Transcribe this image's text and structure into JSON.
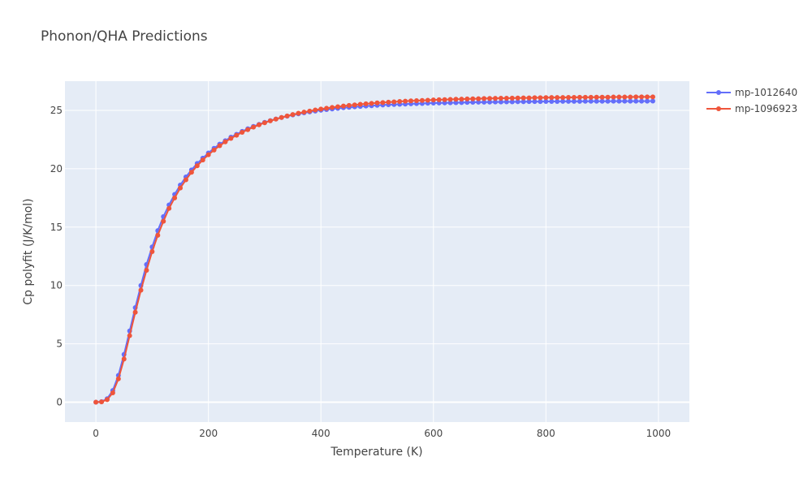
{
  "chart_data": {
    "type": "line",
    "title": "Phonon/QHA Predictions",
    "xlabel": "Temperature (K)",
    "ylabel": "Cp polyfit (J/K/mol)",
    "xlim": [
      -55,
      1055
    ],
    "ylim": [
      -1.7,
      27.5
    ],
    "x_ticks": [
      0,
      200,
      400,
      600,
      800,
      1000
    ],
    "y_ticks": [
      0,
      5,
      10,
      15,
      20,
      25
    ],
    "grid": true,
    "legend": "top-right, outside plot",
    "x": [
      0,
      10,
      20,
      30,
      40,
      50,
      60,
      70,
      80,
      90,
      100,
      110,
      120,
      130,
      140,
      150,
      160,
      170,
      180,
      190,
      200,
      210,
      220,
      230,
      240,
      250,
      260,
      270,
      280,
      290,
      300,
      310,
      320,
      330,
      340,
      350,
      360,
      370,
      380,
      390,
      400,
      410,
      420,
      430,
      440,
      450,
      460,
      470,
      480,
      490,
      500,
      510,
      520,
      530,
      540,
      550,
      560,
      570,
      580,
      590,
      600,
      610,
      620,
      630,
      640,
      650,
      660,
      670,
      680,
      690,
      700,
      710,
      720,
      730,
      740,
      750,
      760,
      770,
      780,
      790,
      800,
      810,
      820,
      830,
      840,
      850,
      860,
      870,
      880,
      890,
      900,
      910,
      920,
      930,
      940,
      950,
      960,
      970,
      980,
      990
    ],
    "series": [
      {
        "name": "mp-1012640",
        "color": "#636efa",
        "values": [
          0.0,
          0.05,
          0.3,
          1.0,
          2.3,
          4.1,
          6.1,
          8.1,
          10.0,
          11.8,
          13.3,
          14.7,
          15.9,
          16.9,
          17.8,
          18.6,
          19.3,
          19.9,
          20.45,
          20.9,
          21.35,
          21.75,
          22.1,
          22.4,
          22.7,
          22.95,
          23.2,
          23.42,
          23.62,
          23.8,
          23.97,
          24.12,
          24.26,
          24.39,
          24.5,
          24.61,
          24.7,
          24.79,
          24.87,
          24.94,
          25.01,
          25.07,
          25.12,
          25.17,
          25.22,
          25.26,
          25.3,
          25.34,
          25.37,
          25.4,
          25.43,
          25.46,
          25.48,
          25.5,
          25.52,
          25.54,
          25.56,
          25.58,
          25.59,
          25.61,
          25.62,
          25.63,
          25.64,
          25.65,
          25.66,
          25.67,
          25.68,
          25.69,
          25.7,
          25.7,
          25.71,
          25.72,
          25.72,
          25.73,
          25.73,
          25.74,
          25.74,
          25.75,
          25.75,
          25.75,
          25.76,
          25.76,
          25.76,
          25.77,
          25.77,
          25.77,
          25.77,
          25.78,
          25.78,
          25.78,
          25.78,
          25.78,
          25.79,
          25.79,
          25.79,
          25.79,
          25.79,
          25.79,
          25.79,
          25.8
        ]
      },
      {
        "name": "mp-1096923",
        "color": "#ef553b",
        "values": [
          0.0,
          0.03,
          0.22,
          0.8,
          2.0,
          3.7,
          5.7,
          7.7,
          9.6,
          11.3,
          12.9,
          14.3,
          15.5,
          16.6,
          17.5,
          18.35,
          19.05,
          19.7,
          20.25,
          20.75,
          21.2,
          21.6,
          21.97,
          22.3,
          22.6,
          22.87,
          23.12,
          23.35,
          23.56,
          23.76,
          23.94,
          24.1,
          24.25,
          24.39,
          24.52,
          24.64,
          24.75,
          24.85,
          24.94,
          25.03,
          25.11,
          25.18,
          25.25,
          25.31,
          25.37,
          25.42,
          25.47,
          25.52,
          25.56,
          25.6,
          25.64,
          25.67,
          25.7,
          25.73,
          25.76,
          25.79,
          25.81,
          25.83,
          25.85,
          25.87,
          25.89,
          25.91,
          25.92,
          25.94,
          25.95,
          25.96,
          25.98,
          25.99,
          26.0,
          26.01,
          26.02,
          26.03,
          26.04,
          26.04,
          26.05,
          26.06,
          26.07,
          26.07,
          26.08,
          26.08,
          26.09,
          26.1,
          26.1,
          26.1,
          26.11,
          26.11,
          26.12,
          26.12,
          26.12,
          26.13,
          26.13,
          26.13,
          26.14,
          26.14,
          26.14,
          26.14,
          26.15,
          26.15,
          26.15,
          26.15
        ]
      }
    ]
  }
}
